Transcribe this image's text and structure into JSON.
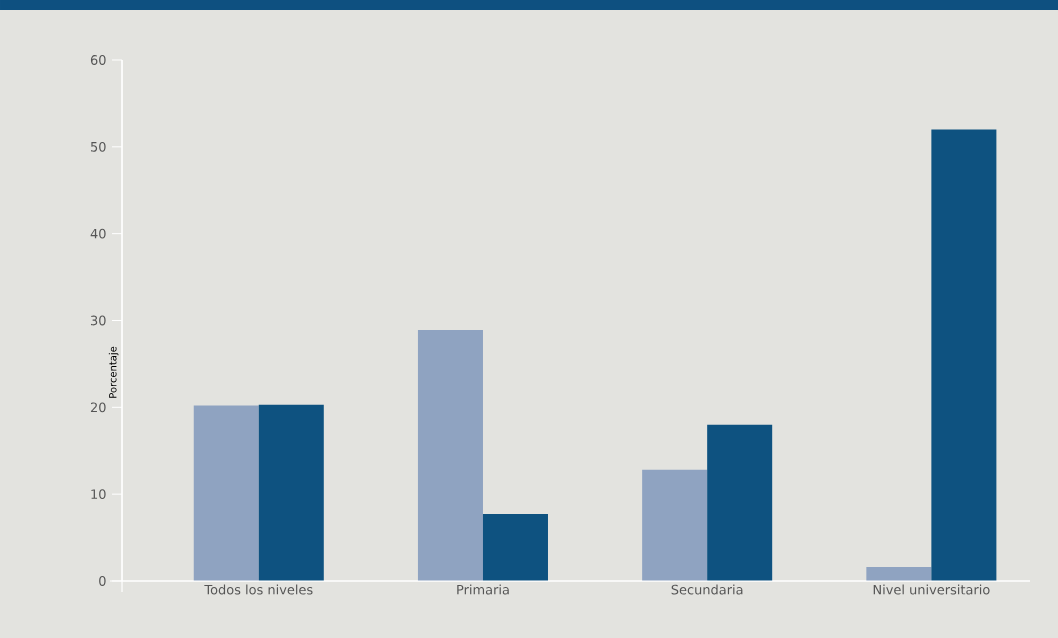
{
  "chart_data": {
    "type": "bar",
    "ylabel": "Porcentaje",
    "categories": [
      "Todos los niveles",
      "Primaria",
      "Secundaria",
      "Nivel universitario"
    ],
    "series": [
      {
        "color": "#8fa3c1",
        "values": [
          20.2,
          28.9,
          12.8,
          1.6
        ]
      },
      {
        "color": "#0e5280",
        "values": [
          20.3,
          7.7,
          18.0,
          52.0
        ]
      }
    ],
    "ylim": [
      0,
      60
    ],
    "yticks": [
      0,
      10,
      20,
      30,
      40,
      50,
      60
    ]
  }
}
